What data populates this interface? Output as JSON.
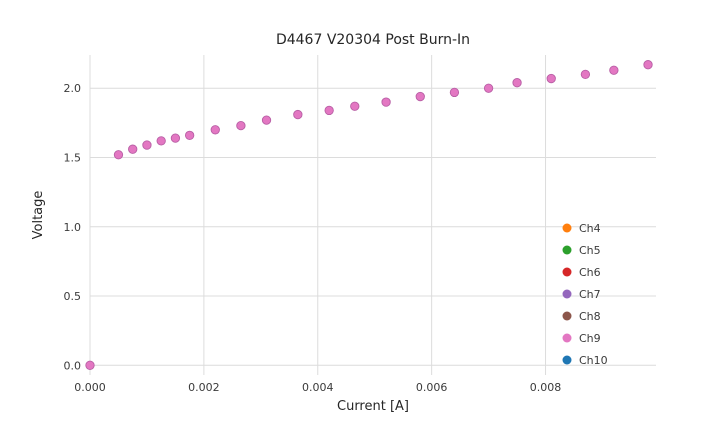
{
  "chart_data": {
    "type": "scatter",
    "title": "D4467 V20304 Post Burn-In",
    "xlabel": "Current [A]",
    "ylabel": "Voltage",
    "xlim": [
      0,
      0.00994
    ],
    "ylim": [
      -0.07,
      2.24
    ],
    "grid": true,
    "grid_color": "#dcdcdc",
    "background": "#ffffff",
    "xticks": {
      "values": [
        0,
        0.002,
        0.004,
        0.006,
        0.008
      ],
      "labels": [
        "0.000",
        "0.002",
        "0.004",
        "0.006",
        "0.008"
      ]
    },
    "yticks": {
      "values": [
        0,
        0.5,
        1.0,
        1.5,
        2.0
      ],
      "labels": [
        "0.0",
        "0.5",
        "1.0",
        "1.5",
        "2.0"
      ]
    },
    "legend": {
      "position": "lower right",
      "entries": [
        {
          "label": "Ch4",
          "color": "#ff7f0e"
        },
        {
          "label": "Ch5",
          "color": "#2ca02c"
        },
        {
          "label": "Ch6",
          "color": "#d62728"
        },
        {
          "label": "Ch7",
          "color": "#9467bd"
        },
        {
          "label": "Ch8",
          "color": "#8c564b"
        },
        {
          "label": "Ch9",
          "color": "#e377c2"
        },
        {
          "label": "Ch10",
          "color": "#1f77b4"
        }
      ]
    },
    "series": [
      {
        "name": "Ch9",
        "color": "#e377c2",
        "edge_color": "#b85fa5",
        "x": [
          0.0,
          0.0005,
          0.00075,
          0.001,
          0.00125,
          0.0015,
          0.00175,
          0.0022,
          0.00265,
          0.0031,
          0.00365,
          0.0042,
          0.00465,
          0.0052,
          0.0058,
          0.0064,
          0.007,
          0.0075,
          0.0081,
          0.0087,
          0.0092,
          0.0098
        ],
        "y": [
          0.0,
          1.52,
          1.56,
          1.59,
          1.62,
          1.64,
          1.66,
          1.7,
          1.73,
          1.77,
          1.81,
          1.84,
          1.87,
          1.9,
          1.94,
          1.97,
          2.0,
          2.04,
          2.07,
          2.1,
          2.13,
          2.17
        ]
      }
    ]
  }
}
